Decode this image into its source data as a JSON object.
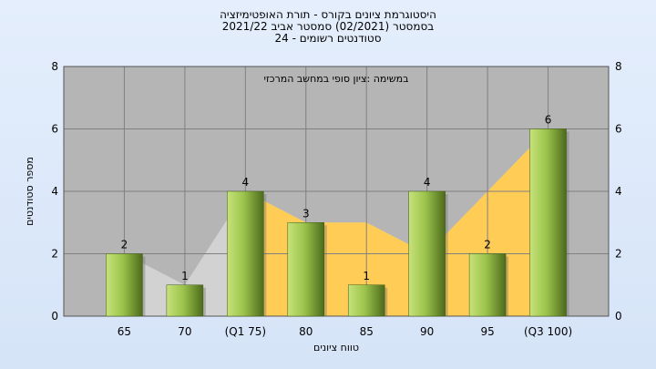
{
  "chart_data": {
    "type": "bar",
    "title_lines": [
      "היסטוגרמת ציונים בקורס - תורת האופטימיזציה",
      "בסמסטר  (02/2021)  סמסטר אביב 2021/22",
      "סטודנטים רשומים - 24"
    ],
    "annotation": "במשימה :ציון סופי במחשב המרכזי",
    "categories": [
      "65",
      "70",
      "(Q1 75)",
      "80",
      "85",
      "90",
      "95",
      "(Q3 100)"
    ],
    "values": [
      2,
      1,
      4,
      3,
      1,
      4,
      2,
      6
    ],
    "xlabel": "טווח ציונים",
    "ylabel": "מספר סטודנטים",
    "ylim": [
      0,
      8
    ],
    "yticks": [
      0,
      2,
      4,
      6,
      8
    ],
    "grid": true,
    "background_series": {
      "type": "area",
      "values": [
        2,
        1,
        4,
        3,
        3,
        2,
        4,
        6
      ]
    },
    "colors": {
      "bar": "#9cc44c",
      "area": "#ffcc55",
      "plot_bg": "#b5b5b5",
      "grid": "#808080"
    }
  }
}
